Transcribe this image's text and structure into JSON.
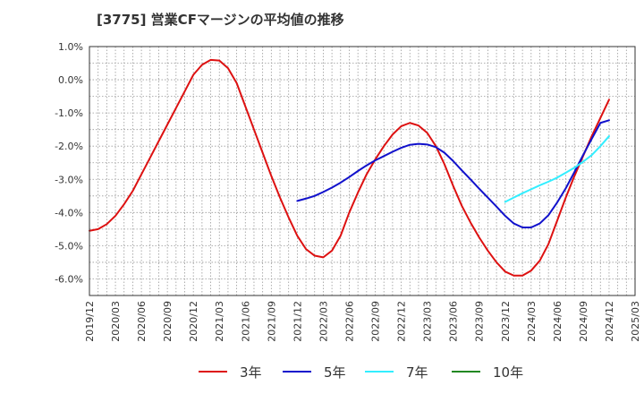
{
  "chart_data": {
    "type": "line",
    "title": "[3775]  営業CFマージンの平均値の推移",
    "xlabel": "",
    "ylabel": "",
    "x_ticks": [
      "2019/12",
      "2020/03",
      "2020/06",
      "2020/09",
      "2020/12",
      "2021/03",
      "2021/06",
      "2021/09",
      "2021/12",
      "2022/03",
      "2022/06",
      "2022/09",
      "2022/12",
      "2023/03",
      "2023/06",
      "2023/09",
      "2023/12",
      "2024/03",
      "2024/06",
      "2024/09",
      "2024/12",
      "2025/03"
    ],
    "y_ticks": [
      "1.0%",
      "0.0%",
      "-1.0%",
      "-2.0%",
      "-3.0%",
      "-4.0%",
      "-5.0%",
      "-6.0%"
    ],
    "ylim": [
      -6.5,
      1.0
    ],
    "y_unit": "%",
    "grid": true,
    "legend_position": "bottom",
    "series": [
      {
        "name": "3年",
        "color": "#dd1111",
        "points": [
          [
            "2019/12",
            -4.55
          ],
          [
            "2020/01",
            -4.5
          ],
          [
            "2020/02",
            -4.35
          ],
          [
            "2020/03",
            -4.1
          ],
          [
            "2020/04",
            -3.75
          ],
          [
            "2020/05",
            -3.35
          ],
          [
            "2020/06",
            -2.85
          ],
          [
            "2020/07",
            -2.35
          ],
          [
            "2020/08",
            -1.85
          ],
          [
            "2020/09",
            -1.35
          ],
          [
            "2020/10",
            -0.85
          ],
          [
            "2020/11",
            -0.35
          ],
          [
            "2020/12",
            0.15
          ],
          [
            "2021/01",
            0.45
          ],
          [
            "2021/02",
            0.6
          ],
          [
            "2021/03",
            0.58
          ],
          [
            "2021/04",
            0.35
          ],
          [
            "2021/05",
            -0.1
          ],
          [
            "2021/06",
            -0.8
          ],
          [
            "2021/07",
            -1.5
          ],
          [
            "2021/08",
            -2.2
          ],
          [
            "2021/09",
            -2.9
          ],
          [
            "2021/10",
            -3.55
          ],
          [
            "2021/11",
            -4.15
          ],
          [
            "2021/12",
            -4.7
          ],
          [
            "2022/01",
            -5.1
          ],
          [
            "2022/02",
            -5.3
          ],
          [
            "2022/03",
            -5.35
          ],
          [
            "2022/04",
            -5.15
          ],
          [
            "2022/05",
            -4.7
          ],
          [
            "2022/06",
            -4.0
          ],
          [
            "2022/07",
            -3.4
          ],
          [
            "2022/08",
            -2.85
          ],
          [
            "2022/09",
            -2.4
          ],
          [
            "2022/10",
            -2.0
          ],
          [
            "2022/11",
            -1.65
          ],
          [
            "2022/12",
            -1.4
          ],
          [
            "2023/01",
            -1.3
          ],
          [
            "2023/02",
            -1.38
          ],
          [
            "2023/03",
            -1.6
          ],
          [
            "2023/04",
            -2.0
          ],
          [
            "2023/05",
            -2.55
          ],
          [
            "2023/06",
            -3.2
          ],
          [
            "2023/07",
            -3.8
          ],
          [
            "2023/08",
            -4.3
          ],
          [
            "2023/09",
            -4.75
          ],
          [
            "2023/10",
            -5.15
          ],
          [
            "2023/11",
            -5.5
          ],
          [
            "2023/12",
            -5.78
          ],
          [
            "2024/01",
            -5.9
          ],
          [
            "2024/02",
            -5.9
          ],
          [
            "2024/03",
            -5.75
          ],
          [
            "2024/04",
            -5.45
          ],
          [
            "2024/05",
            -4.95
          ],
          [
            "2024/06",
            -4.25
          ],
          [
            "2024/07",
            -3.55
          ],
          [
            "2024/08",
            -2.9
          ],
          [
            "2024/09",
            -2.3
          ],
          [
            "2024/10",
            -1.7
          ],
          [
            "2024/11",
            -1.15
          ],
          [
            "2024/12",
            -0.6
          ]
        ]
      },
      {
        "name": "5年",
        "color": "#1111cc",
        "points": [
          [
            "2021/12",
            -3.65
          ],
          [
            "2022/01",
            -3.58
          ],
          [
            "2022/02",
            -3.5
          ],
          [
            "2022/03",
            -3.38
          ],
          [
            "2022/04",
            -3.25
          ],
          [
            "2022/05",
            -3.1
          ],
          [
            "2022/06",
            -2.93
          ],
          [
            "2022/07",
            -2.75
          ],
          [
            "2022/08",
            -2.58
          ],
          [
            "2022/09",
            -2.43
          ],
          [
            "2022/10",
            -2.3
          ],
          [
            "2022/11",
            -2.17
          ],
          [
            "2022/12",
            -2.05
          ],
          [
            "2023/01",
            -1.96
          ],
          [
            "2023/02",
            -1.93
          ],
          [
            "2023/03",
            -1.95
          ],
          [
            "2023/04",
            -2.03
          ],
          [
            "2023/05",
            -2.2
          ],
          [
            "2023/06",
            -2.45
          ],
          [
            "2023/07",
            -2.73
          ],
          [
            "2023/08",
            -3.0
          ],
          [
            "2023/09",
            -3.28
          ],
          [
            "2023/10",
            -3.55
          ],
          [
            "2023/11",
            -3.82
          ],
          [
            "2023/12",
            -4.1
          ],
          [
            "2024/01",
            -4.33
          ],
          [
            "2024/02",
            -4.45
          ],
          [
            "2024/03",
            -4.45
          ],
          [
            "2024/04",
            -4.33
          ],
          [
            "2024/05",
            -4.08
          ],
          [
            "2024/06",
            -3.7
          ],
          [
            "2024/07",
            -3.27
          ],
          [
            "2024/08",
            -2.78
          ],
          [
            "2024/09",
            -2.27
          ],
          [
            "2024/10",
            -1.78
          ],
          [
            "2024/11",
            -1.3
          ],
          [
            "2024/12",
            -1.22
          ]
        ]
      },
      {
        "name": "7年",
        "color": "#33eeff",
        "points": [
          [
            "2023/12",
            -3.68
          ],
          [
            "2024/01",
            -3.55
          ],
          [
            "2024/02",
            -3.42
          ],
          [
            "2024/03",
            -3.3
          ],
          [
            "2024/04",
            -3.18
          ],
          [
            "2024/05",
            -3.07
          ],
          [
            "2024/06",
            -2.95
          ],
          [
            "2024/07",
            -2.8
          ],
          [
            "2024/08",
            -2.65
          ],
          [
            "2024/09",
            -2.47
          ],
          [
            "2024/10",
            -2.27
          ],
          [
            "2024/11",
            -2.0
          ],
          [
            "2024/12",
            -1.7
          ]
        ]
      },
      {
        "name": "10年",
        "color": "#228822",
        "points": []
      }
    ]
  }
}
